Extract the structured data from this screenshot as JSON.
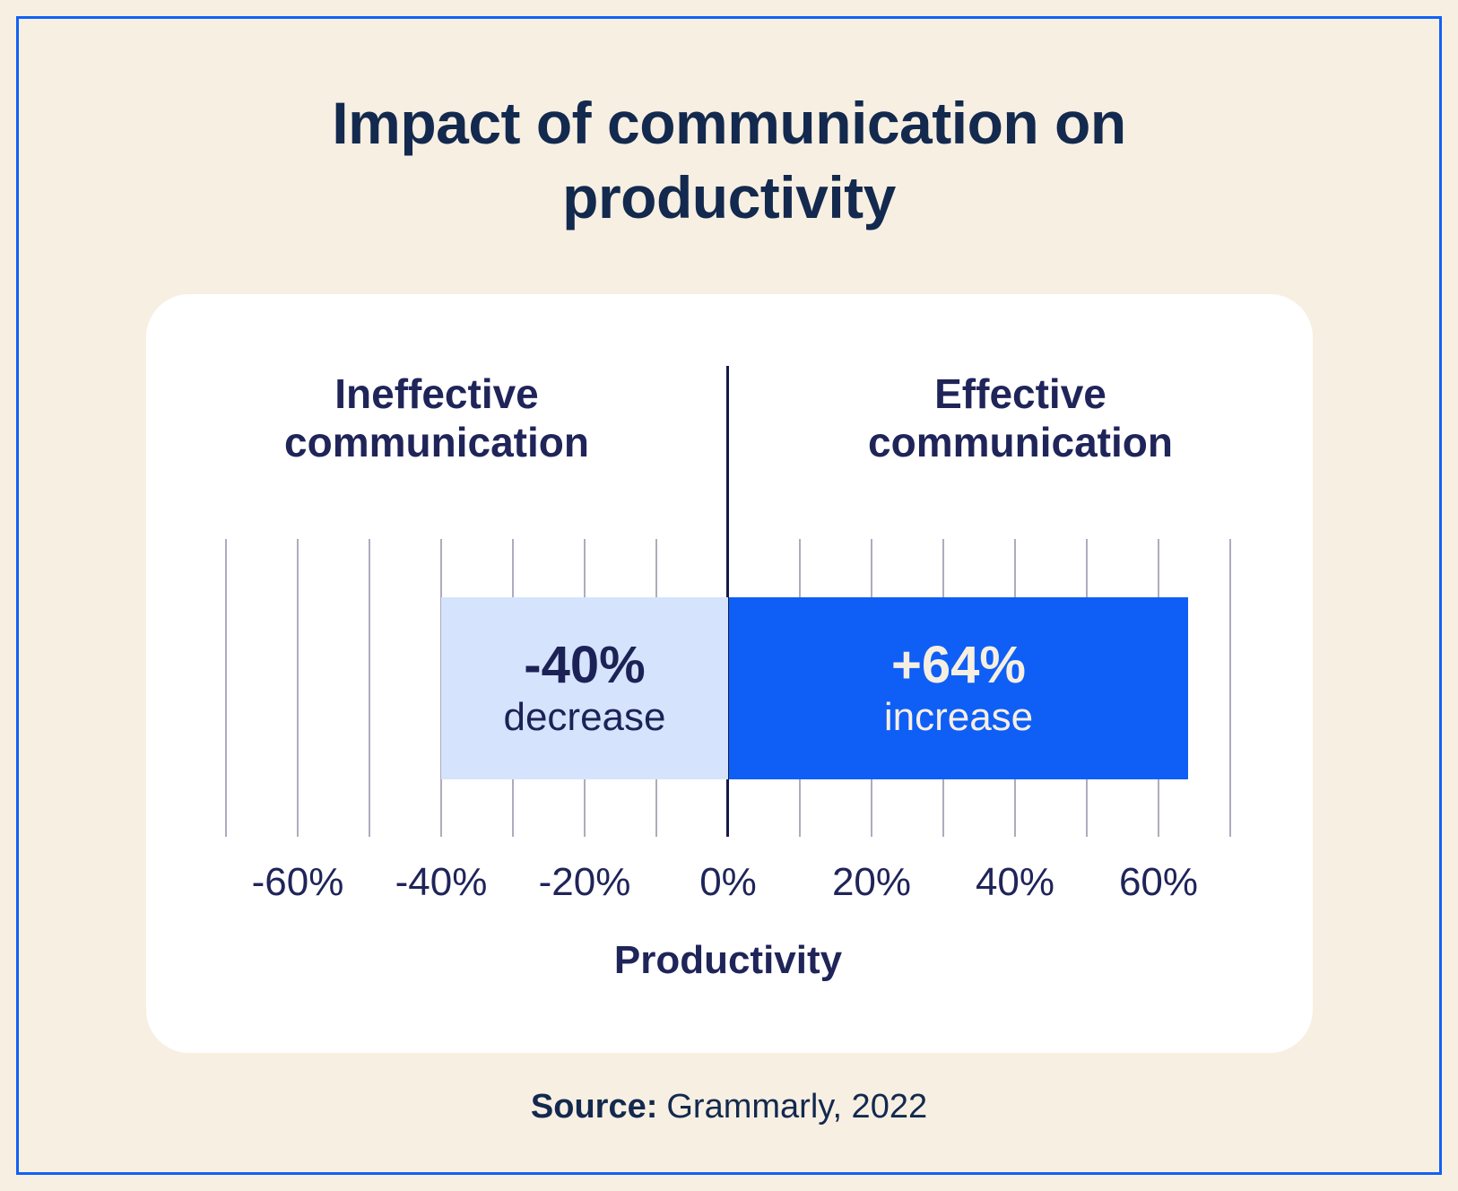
{
  "title": "Impact of communication on productivity",
  "source": {
    "label": "Source:",
    "value": "Grammarly, 2022"
  },
  "chart_data": {
    "type": "bar",
    "orientation": "horizontal-diverging",
    "title": "Impact of communication on productivity",
    "categories": [
      "Ineffective communication",
      "Effective communication"
    ],
    "values": [
      -40,
      64
    ],
    "series": [
      {
        "name": "Ineffective communication",
        "value": -40,
        "label": "-40%",
        "sublabel": "decrease"
      },
      {
        "name": "Effective communication",
        "value": 64,
        "label": "+64%",
        "sublabel": "increase"
      }
    ],
    "xlabel": "Productivity",
    "x_ticks": [
      {
        "value": -60,
        "label": "-60%"
      },
      {
        "value": -40,
        "label": "-40%"
      },
      {
        "value": -20,
        "label": "-20%"
      },
      {
        "value": 0,
        "label": "0%"
      },
      {
        "value": 20,
        "label": "20%"
      },
      {
        "value": 40,
        "label": "40%"
      },
      {
        "value": 60,
        "label": "60%"
      }
    ],
    "xlim": [
      -70,
      70
    ],
    "gridline_step": 10,
    "grid": true,
    "legend": "none"
  },
  "colors": {
    "page-bg": "#F7EFE2",
    "border-blue": "#1061F5",
    "card-bg": "#FFFFFF",
    "title-navy": "#13294E",
    "chart-text": "#1F2459",
    "grid-line": "#ADACBE",
    "zero-line": "#151A48",
    "bar-negative": "#D5E4FC",
    "bar-negative-text": "#1D2256",
    "bar-positive": "#0F5FF6",
    "bar-positive-text": "#F6EFE1"
  }
}
